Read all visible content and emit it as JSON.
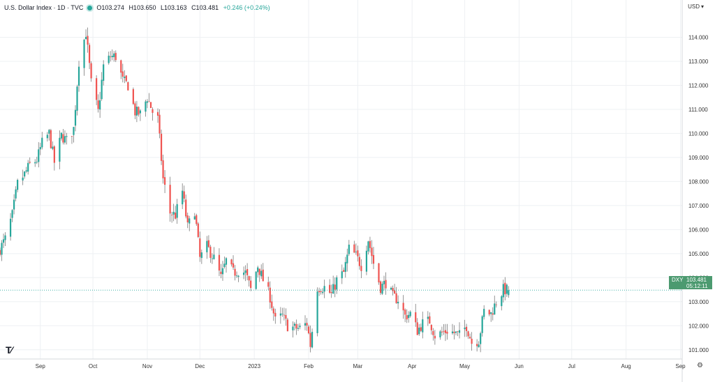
{
  "header": {
    "title": "U.S. Dollar Index · 1D · TVC",
    "open": "O103.274",
    "high": "H103.650",
    "low": "L103.163",
    "close": "C103.481",
    "change": "+0.246 (+0.24%)"
  },
  "currency_label": "USD",
  "price_tag": {
    "symbol": "DXY",
    "price": "103.481",
    "countdown": "05:12:11"
  },
  "colors": {
    "up": "#26a69a",
    "down": "#ef5350",
    "wick": "#7a7a7a",
    "grid": "#eef0f3",
    "tag": "#4c9a70"
  },
  "icons": {
    "logo": "tradingview-logo",
    "settings": "gear-icon"
  },
  "chart_data": {
    "type": "candlestick",
    "title": "U.S. Dollar Index · 1D · TVC",
    "x_range": [
      "2022-08-09",
      "2023-09-02"
    ],
    "y_range": [
      100.5,
      115.0
    ],
    "y_ticks": [
      "101.000",
      "102.000",
      "103.000",
      "104.000",
      "105.000",
      "106.000",
      "107.000",
      "108.000",
      "109.000",
      "110.000",
      "111.000",
      "112.000",
      "113.000",
      "114.000"
    ],
    "x_ticks": [
      {
        "label": "Sep",
        "date": "2022-09-01"
      },
      {
        "label": "Oct",
        "date": "2022-10-01"
      },
      {
        "label": "Nov",
        "date": "2022-11-01"
      },
      {
        "label": "Dec",
        "date": "2022-12-01"
      },
      {
        "label": "2023",
        "date": "2023-01-01"
      },
      {
        "label": "Feb",
        "date": "2023-02-01"
      },
      {
        "label": "Mar",
        "date": "2023-03-01"
      },
      {
        "label": "Apr",
        "date": "2023-04-01"
      },
      {
        "label": "May",
        "date": "2023-05-01"
      },
      {
        "label": "Jun",
        "date": "2023-06-01"
      },
      {
        "label": "Jul",
        "date": "2023-07-01"
      },
      {
        "label": "Aug",
        "date": "2023-08-01"
      },
      {
        "label": "Sep",
        "date": "2023-09-01"
      }
    ],
    "grid": true,
    "last_price": 103.481,
    "path": [
      [
        "2022-08-09",
        105.2
      ],
      [
        "2022-08-12",
        105.6
      ],
      [
        "2022-08-16",
        106.6
      ],
      [
        "2022-08-19",
        107.9
      ],
      [
        "2022-08-23",
        108.3
      ],
      [
        "2022-08-26",
        108.7
      ],
      [
        "2022-08-30",
        108.9
      ],
      [
        "2022-09-02",
        109.6
      ],
      [
        "2022-09-06",
        110.0
      ],
      [
        "2022-09-09",
        108.8
      ],
      [
        "2022-09-13",
        109.9
      ],
      [
        "2022-09-16",
        109.7
      ],
      [
        "2022-09-20",
        110.2
      ],
      [
        "2022-09-23",
        113.0
      ],
      [
        "2022-09-27",
        114.2
      ],
      [
        "2022-09-30",
        112.1
      ],
      [
        "2022-10-04",
        110.9
      ],
      [
        "2022-10-07",
        112.8
      ],
      [
        "2022-10-11",
        113.2
      ],
      [
        "2022-10-14",
        113.2
      ],
      [
        "2022-10-18",
        112.2
      ],
      [
        "2022-10-21",
        112.0
      ],
      [
        "2022-10-25",
        110.9
      ],
      [
        "2022-10-28",
        110.8
      ],
      [
        "2022-11-01",
        111.5
      ],
      [
        "2022-11-04",
        110.9
      ],
      [
        "2022-11-07",
        110.6
      ],
      [
        "2022-11-10",
        108.1
      ],
      [
        "2022-11-14",
        106.7
      ],
      [
        "2022-11-17",
        106.6
      ],
      [
        "2022-11-21",
        107.6
      ],
      [
        "2022-11-24",
        106.1
      ],
      [
        "2022-11-28",
        106.8
      ],
      [
        "2022-12-01",
        104.8
      ],
      [
        "2022-12-05",
        105.3
      ],
      [
        "2022-12-09",
        104.8
      ],
      [
        "2022-12-13",
        104.0
      ],
      [
        "2022-12-16",
        104.7
      ],
      [
        "2022-12-20",
        104.2
      ],
      [
        "2022-12-23",
        104.3
      ],
      [
        "2022-12-27",
        104.2
      ],
      [
        "2022-12-30",
        103.5
      ],
      [
        "2023-01-03",
        104.5
      ],
      [
        "2023-01-06",
        103.9
      ],
      [
        "2023-01-10",
        103.2
      ],
      [
        "2023-01-13",
        102.2
      ],
      [
        "2023-01-17",
        102.4
      ],
      [
        "2023-01-20",
        102.0
      ],
      [
        "2023-01-24",
        101.9
      ],
      [
        "2023-01-27",
        101.9
      ],
      [
        "2023-01-31",
        102.1
      ],
      [
        "2023-02-02",
        101.2
      ],
      [
        "2023-02-06",
        103.6
      ],
      [
        "2023-02-10",
        103.6
      ],
      [
        "2023-02-14",
        103.3
      ],
      [
        "2023-02-17",
        103.9
      ],
      [
        "2023-02-21",
        104.2
      ],
      [
        "2023-02-24",
        105.2
      ],
      [
        "2023-02-28",
        104.9
      ],
      [
        "2023-03-03",
        104.5
      ],
      [
        "2023-03-07",
        105.6
      ],
      [
        "2023-03-10",
        104.6
      ],
      [
        "2023-03-14",
        103.6
      ],
      [
        "2023-03-17",
        103.8
      ],
      [
        "2023-03-21",
        103.2
      ],
      [
        "2023-03-24",
        103.1
      ],
      [
        "2023-03-28",
        102.4
      ],
      [
        "2023-03-31",
        102.5
      ],
      [
        "2023-04-04",
        101.8
      ],
      [
        "2023-04-07",
        102.1
      ],
      [
        "2023-04-11",
        102.2
      ],
      [
        "2023-04-14",
        101.6
      ],
      [
        "2023-04-18",
        101.7
      ],
      [
        "2023-04-21",
        101.8
      ],
      [
        "2023-04-25",
        101.7
      ],
      [
        "2023-04-28",
        101.6
      ],
      [
        "2023-05-02",
        102.0
      ],
      [
        "2023-05-05",
        101.3
      ],
      [
        "2023-05-09",
        101.4
      ],
      [
        "2023-05-12",
        102.6
      ],
      [
        "2023-05-16",
        102.5
      ],
      [
        "2023-05-19",
        103.0
      ],
      [
        "2023-05-23",
        103.5
      ],
      [
        "2023-05-26",
        103.481
      ]
    ]
  }
}
